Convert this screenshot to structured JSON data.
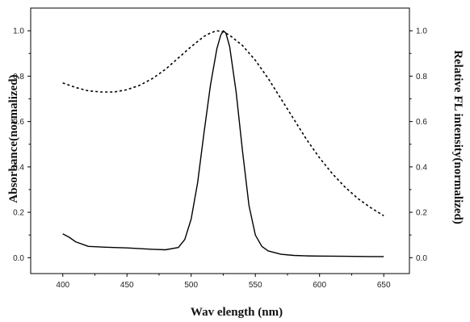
{
  "chart_data": {
    "type": "line",
    "xlabel": "Wav elength (nm)",
    "ylabel_left": "Absorbance(normalized)",
    "ylabel_right": "Relative FL intensity(normalized)",
    "xlim": [
      375,
      670
    ],
    "ylim": [
      -0.07,
      1.1
    ],
    "x_ticks": [
      "400",
      "450",
      "500",
      "550",
      "600",
      "650"
    ],
    "y_ticks": [
      "0.0",
      "0.2",
      "0.4",
      "0.6",
      "0.8",
      "1.0"
    ],
    "grid": false,
    "legend": "none",
    "series": [
      {
        "style": "dashed",
        "x": [
          400,
          410,
          420,
          430,
          440,
          450,
          460,
          470,
          480,
          490,
          500,
          510,
          515,
          520,
          525,
          530,
          540,
          550,
          560,
          570,
          580,
          590,
          600,
          610,
          620,
          630,
          640,
          650
        ],
        "y": [
          0.77,
          0.75,
          0.735,
          0.73,
          0.73,
          0.74,
          0.76,
          0.79,
          0.83,
          0.88,
          0.93,
          0.975,
          0.99,
          1.0,
          0.995,
          0.98,
          0.935,
          0.87,
          0.79,
          0.7,
          0.61,
          0.52,
          0.44,
          0.37,
          0.31,
          0.26,
          0.22,
          0.185
        ]
      },
      {
        "style": "solid",
        "x": [
          400,
          405,
          410,
          420,
          430,
          440,
          450,
          460,
          470,
          480,
          490,
          495,
          500,
          505,
          510,
          515,
          520,
          523,
          525,
          527,
          530,
          535,
          540,
          545,
          550,
          555,
          560,
          570,
          580,
          590,
          600,
          620,
          640,
          650
        ],
        "y": [
          0.105,
          0.09,
          0.07,
          0.05,
          0.047,
          0.045,
          0.043,
          0.04,
          0.037,
          0.035,
          0.045,
          0.08,
          0.17,
          0.33,
          0.55,
          0.76,
          0.92,
          0.98,
          1.0,
          0.99,
          0.93,
          0.73,
          0.47,
          0.23,
          0.1,
          0.05,
          0.03,
          0.015,
          0.01,
          0.008,
          0.007,
          0.006,
          0.005,
          0.005
        ]
      }
    ]
  }
}
